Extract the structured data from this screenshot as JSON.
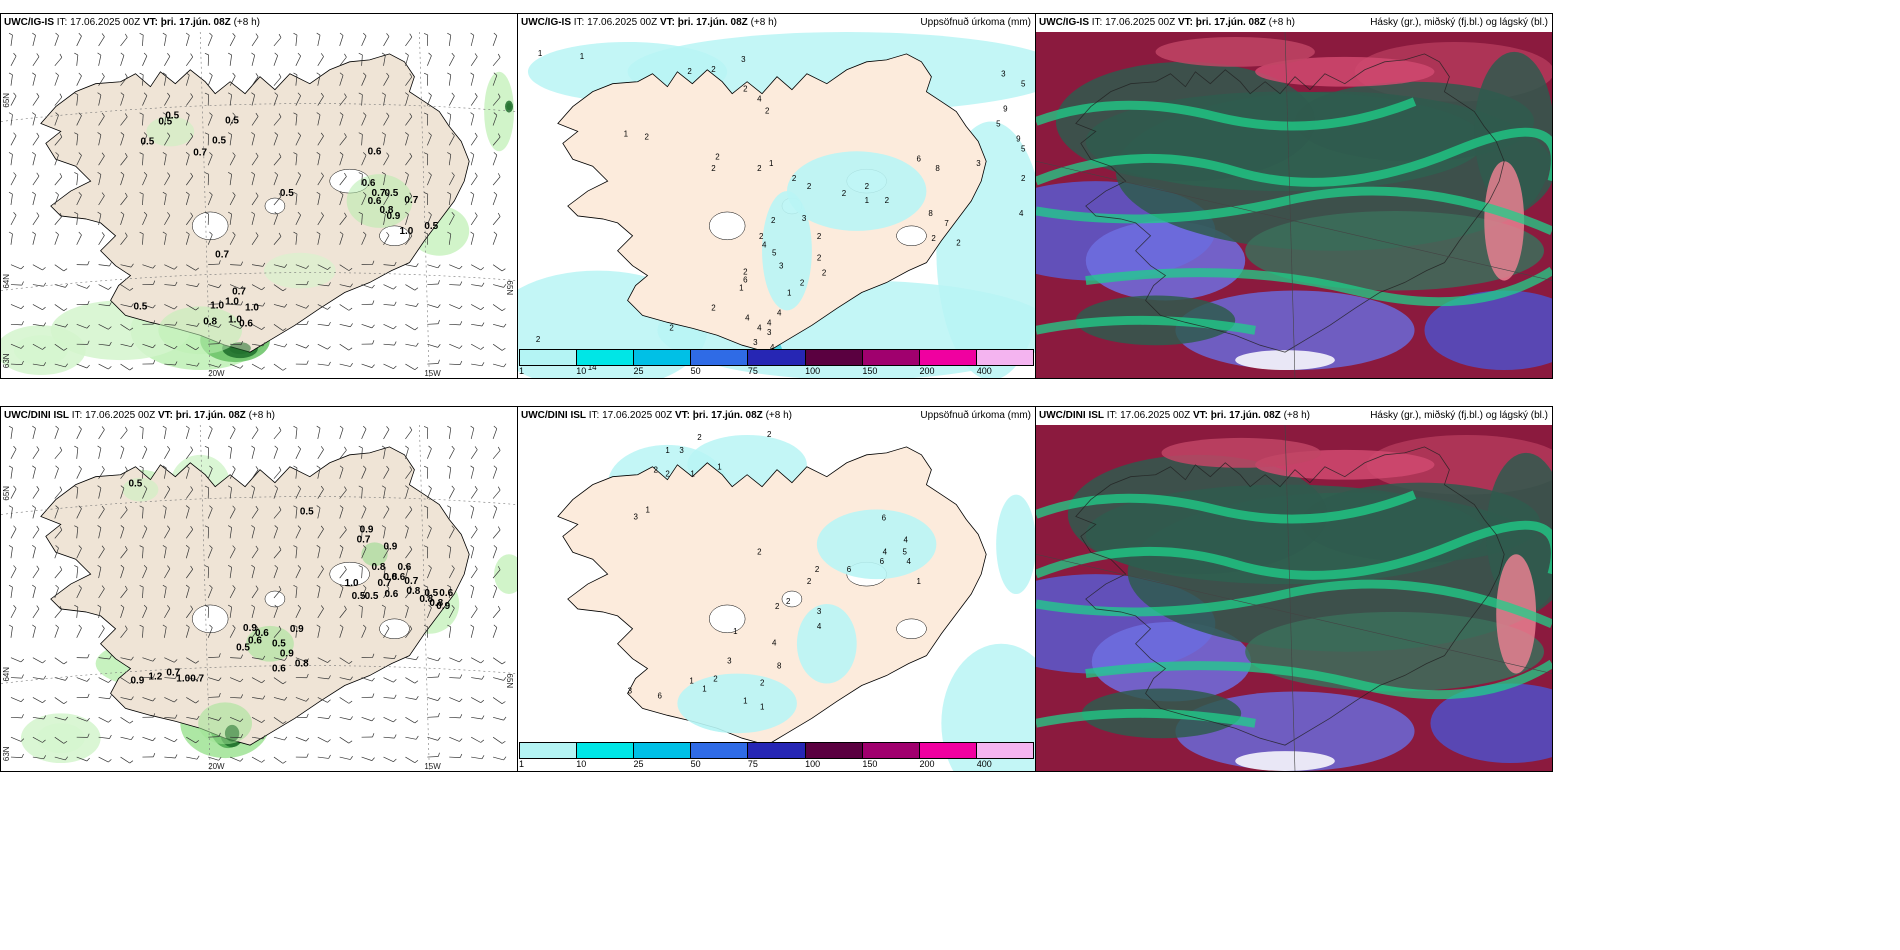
{
  "panels": [
    {
      "id": "p1",
      "type": "wind",
      "model": "UWC/IG-IS",
      "it": "IT: 17.06.2025 00Z",
      "vt_label": "VT:",
      "vt": "þri. 17.jún. 08Z",
      "lead": "(+8 h)",
      "lat_labels": [
        "65N",
        "64N",
        "63N"
      ],
      "lon_labels": [
        "20W",
        "15W"
      ],
      "side_label": "65N",
      "values": [
        "0.5",
        "0.5",
        "0.5",
        "0.5",
        "0.5",
        "0.7",
        "0.6",
        "0.6",
        "0.7",
        "0.6",
        "0.5",
        "0.7",
        "0.8",
        "0.9",
        "1.0",
        "0.5",
        "0.5",
        "0.7",
        "0.7",
        "1.0",
        "1.0",
        "0.5",
        "0.8",
        "1.0",
        "0.6",
        "1.0"
      ]
    },
    {
      "id": "p2",
      "type": "precip",
      "model": "UWC/IG-IS",
      "it": "IT: 17.06.2025 00Z",
      "vt_label": "VT:",
      "vt": "þri. 17.jún. 08Z",
      "lead": "(+8 h)",
      "right_title": "Uppsöfnuð úrkoma (mm)",
      "values": [
        "1",
        "1",
        "2",
        "3",
        "2",
        "2",
        "4",
        "2",
        "1",
        "2",
        "2",
        "2",
        "2",
        "1",
        "2",
        "2",
        "2",
        "2",
        "1",
        "2",
        "6",
        "8",
        "8",
        "7",
        "2",
        "2",
        "3",
        "3",
        "5",
        "5",
        "9",
        "9",
        "5",
        "2",
        "4",
        "3",
        "2",
        "2",
        "2",
        "2",
        "1",
        "1",
        "4",
        "4",
        "4",
        "4",
        "3",
        "3",
        "4",
        "2",
        "2",
        "3",
        "14",
        "2",
        "2",
        "3",
        "2",
        "5",
        "3",
        "6",
        "2",
        "4",
        "2"
      ],
      "legend": [
        "1",
        "10",
        "25",
        "50",
        "75",
        "100",
        "150",
        "200",
        "400"
      ],
      "legend_colors": [
        "#b4f4f4",
        "#00e6e6",
        "#00c0e6",
        "#2f6be6",
        "#2626b4",
        "#5a0040",
        "#a0006e",
        "#f000a0",
        "#f4b4f0"
      ]
    },
    {
      "id": "p3",
      "type": "cloud",
      "model": "UWC/IG-IS",
      "it": "IT: 17.06.2025 00Z",
      "vt_label": "VT:",
      "vt": "þri. 17.jún. 08Z",
      "lead": "(+8 h)",
      "right_title": "Hásky (gr.), miðský (fj.bl.) og lágský (bl.)"
    },
    {
      "id": "p4",
      "type": "wind",
      "model": "UWC/DINI ISL",
      "it": "IT: 17.06.2025 00Z",
      "vt_label": "VT:",
      "vt": "þri. 17.jún. 08Z",
      "lead": "(+8 h)",
      "lat_labels": [
        "65N",
        "64N",
        "63N"
      ],
      "lon_labels": [
        "20W",
        "15W"
      ],
      "side_label": "65N",
      "values": [
        "0.5",
        "0.5",
        "0.9",
        "0.7",
        "0.9",
        "0.8",
        "0.6",
        "0.8",
        "0.6",
        "0.7",
        "1.0",
        "0.7",
        "0.8",
        "0.5",
        "0.5",
        "0.6",
        "0.8",
        "0.5",
        "0.6",
        "0.8",
        "0.9",
        "0.9",
        "0.6",
        "0.9",
        "0.6",
        "0.5",
        "0.9",
        "0.8",
        "0.5",
        "0.6",
        "0.9",
        "1.2",
        "0.7",
        "1.0",
        "0.7"
      ]
    },
    {
      "id": "p5",
      "type": "precip",
      "model": "UWC/DINI ISL",
      "it": "IT: 17.06.2025 00Z",
      "vt_label": "VT:",
      "vt": "þri. 17.jún. 08Z",
      "lead": "(+8 h)",
      "right_title": "Uppsöfnuð úrkoma (mm)",
      "values": [
        "2",
        "2",
        "1",
        "3",
        "2",
        "2",
        "1",
        "1",
        "3",
        "1",
        "6",
        "4",
        "4",
        "5",
        "6",
        "4",
        "2",
        "6",
        "2",
        "1",
        "3",
        "2",
        "2",
        "4",
        "2",
        "4",
        "3",
        "2",
        "1",
        "1",
        "3",
        "6",
        "8",
        "2",
        "1",
        "1",
        "1"
      ],
      "legend": [
        "1",
        "10",
        "25",
        "50",
        "75",
        "100",
        "150",
        "200",
        "400"
      ],
      "legend_colors": [
        "#b4f4f4",
        "#00e6e6",
        "#00c0e6",
        "#2f6be6",
        "#2626b4",
        "#5a0040",
        "#a0006e",
        "#f000a0",
        "#f4b4f0"
      ]
    },
    {
      "id": "p6",
      "type": "cloud",
      "model": "UWC/DINI ISL",
      "it": "IT: 17.06.2025 00Z",
      "vt_label": "VT:",
      "vt": "þri. 17.jún. 08Z",
      "lead": "(+8 h)",
      "right_title": "Hásky (gr.), miðský (fj.bl.) og lágský (bl.)"
    }
  ]
}
